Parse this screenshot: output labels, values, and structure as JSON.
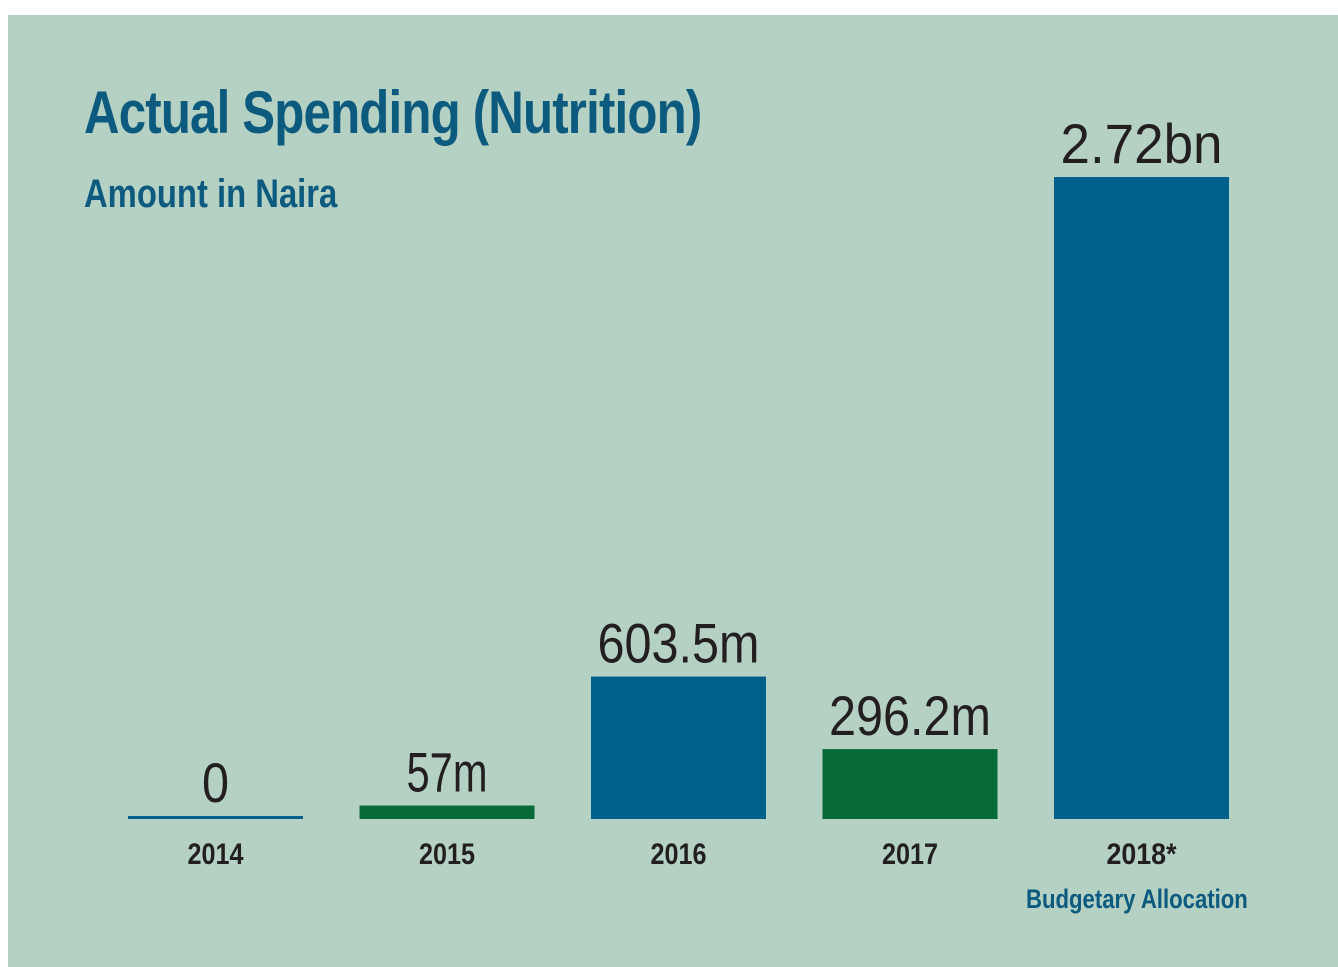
{
  "colors": {
    "background": "#b4d1c4",
    "title": "#0d5a7f",
    "blue_bar": "#00608c",
    "green_bar": "#066a37",
    "text": "#231f20"
  },
  "chart_data": {
    "type": "bar",
    "title": "Actual Spending (Nutrition)",
    "subtitle": "Amount in Naira",
    "note": "Budgetary Allocation",
    "categories": [
      "2014",
      "2015",
      "2016",
      "2017",
      "2018*"
    ],
    "values": [
      0,
      57000000,
      603500000,
      296200000,
      2720000000
    ],
    "value_labels": [
      "0",
      "57m",
      "603.5m",
      "296.2m",
      "2.72bn"
    ],
    "bar_colors": [
      "#00608c",
      "#066a37",
      "#00608c",
      "#066a37",
      "#00608c"
    ],
    "ylim": [
      0,
      2720000000
    ],
    "grid": false,
    "legend": "none"
  }
}
